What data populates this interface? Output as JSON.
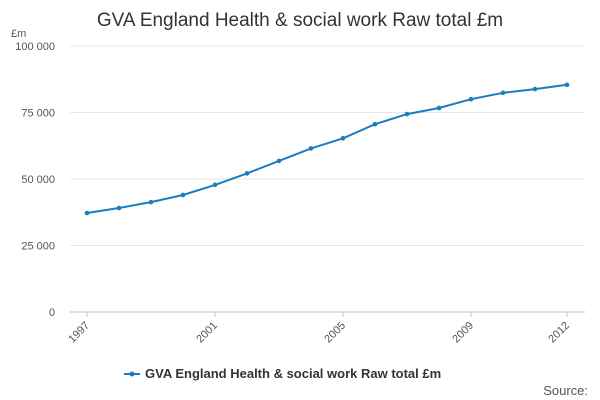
{
  "chart_data": {
    "type": "line",
    "title": "GVA England Health & social work Raw total £m",
    "ylabel": "£m",
    "xlabel": "",
    "ylim": [
      0,
      100000
    ],
    "y_ticks": [
      0,
      25000,
      50000,
      75000,
      100000
    ],
    "y_tick_labels": [
      "0",
      "25 000",
      "50 000",
      "75 000",
      "100 000"
    ],
    "x_tick_labels": [
      "1997",
      "2001",
      "2005",
      "2009",
      "2012"
    ],
    "x": [
      1997,
      1998,
      1999,
      2000,
      2001,
      2002,
      2003,
      2004,
      2005,
      2006,
      2007,
      2008,
      2009,
      2010,
      2011,
      2012
    ],
    "series": [
      {
        "name": "GVA England Health & social work Raw total £m",
        "color": "#1a7dc0",
        "values": [
          37200,
          39100,
          41300,
          44000,
          47800,
          52100,
          56800,
          61500,
          65300,
          70600,
          74400,
          76700,
          80000,
          82400,
          83800,
          85400
        ]
      }
    ],
    "grid": true,
    "legend_position": "bottom"
  },
  "footer": {
    "source_label": "Source:"
  }
}
